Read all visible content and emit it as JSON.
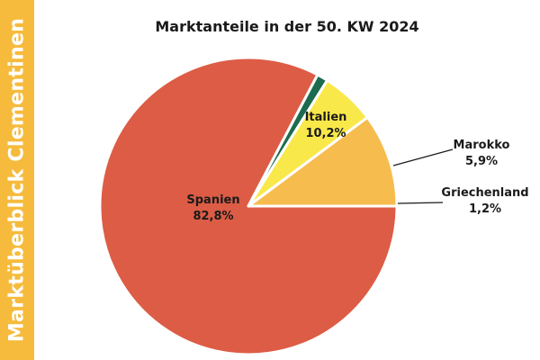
{
  "side_banner": "Marktüberblick Clementinen",
  "chart_data": {
    "type": "pie",
    "title": "Marktanteile in der 50. KW 2024",
    "slices": [
      {
        "name": "Spanien",
        "value": 82.8,
        "label": "82,8%",
        "color": "#dd5c45"
      },
      {
        "name": "Griechenland",
        "value": 1.2,
        "label": "1,2%",
        "color": "#1d6b4e"
      },
      {
        "name": "Marokko",
        "value": 5.9,
        "label": "5,9%",
        "color": "#f9e84a"
      },
      {
        "name": "Italien",
        "value": 10.2,
        "label": "10,2%",
        "color": "#f6bc4e"
      }
    ]
  }
}
